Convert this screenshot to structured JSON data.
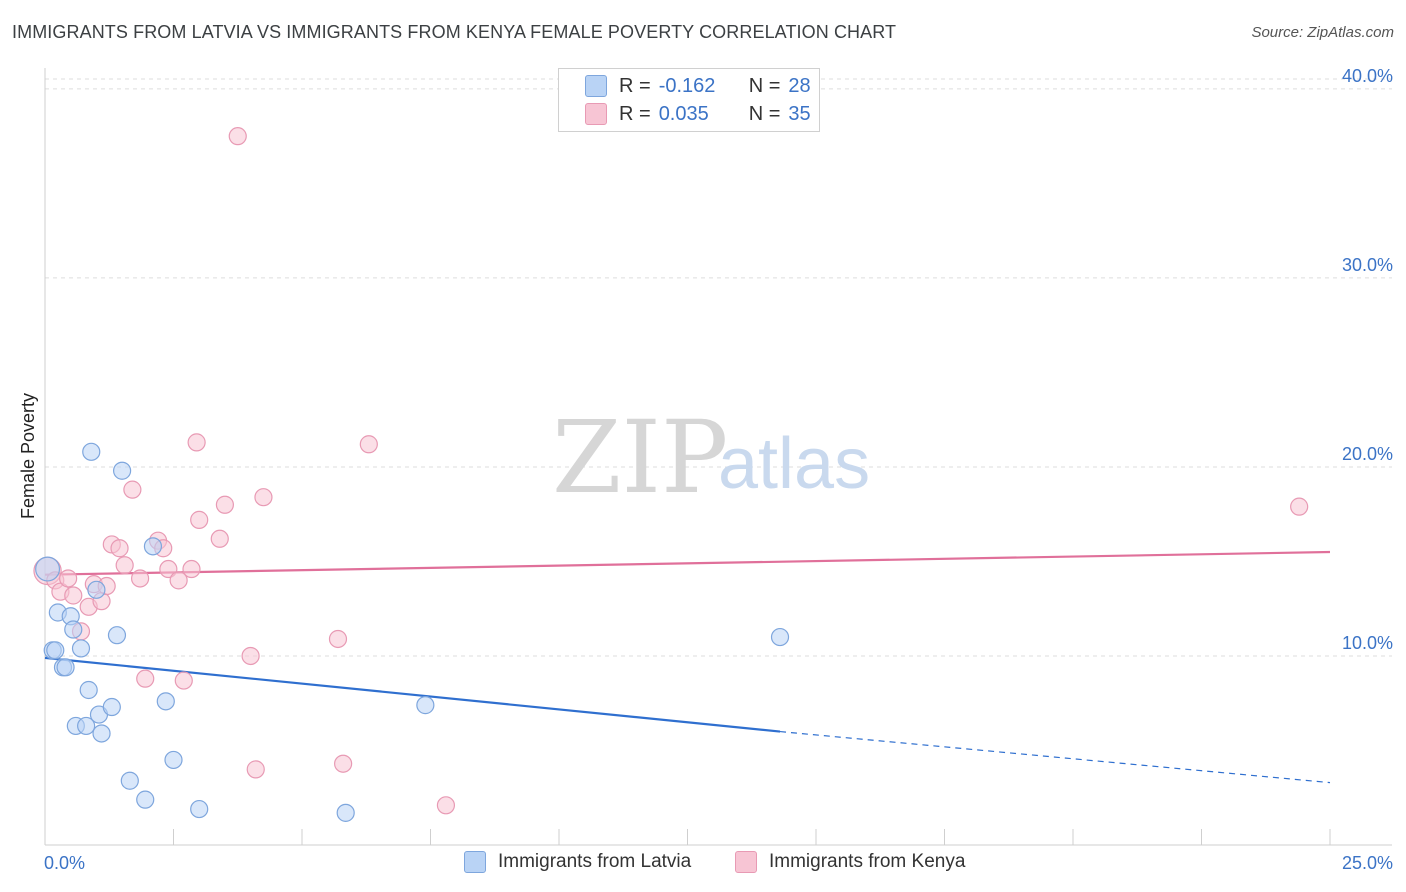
{
  "title": "IMMIGRANTS FROM LATVIA VS IMMIGRANTS FROM KENYA FEMALE POVERTY CORRELATION CHART",
  "source": "Source: ZipAtlas.com",
  "watermark": {
    "zip": "ZIP",
    "atlas": "atlas"
  },
  "colors": {
    "latvia_fill": "#b9d3f5",
    "latvia_stroke": "#7ea6dd",
    "latvia_line": "#2f6fcf",
    "kenya_fill": "#f7c5d4",
    "kenya_stroke": "#e89ab4",
    "kenya_line": "#e0709a",
    "axis_text": "#3b73c6",
    "grid": "#dddddd"
  },
  "legend": {
    "latvia": {
      "r_label": "R =",
      "r_value": "-0.162",
      "n_label": "N =",
      "n_value": "28"
    },
    "kenya": {
      "r_label": "R =",
      "r_value": "0.035",
      "n_label": "N =",
      "n_value": "35"
    }
  },
  "chart_data": {
    "type": "scatter",
    "title": "IMMIGRANTS FROM LATVIA VS IMMIGRANTS FROM KENYA FEMALE POVERTY CORRELATION CHART",
    "xlabel": "",
    "ylabel": "Female Poverty",
    "xlim": [
      0,
      25
    ],
    "ylim": [
      0,
      41
    ],
    "x_tick_labels": [
      {
        "value": 0,
        "label": "0.0%"
      },
      {
        "value": 25,
        "label": "25.0%"
      }
    ],
    "y_ticks": [
      {
        "value": 10,
        "label": "10.0%"
      },
      {
        "value": 20,
        "label": "20.0%"
      },
      {
        "value": 30,
        "label": "30.0%"
      },
      {
        "value": 40,
        "label": "40.0%"
      }
    ],
    "series": [
      {
        "name": "Immigrants from Latvia",
        "points": [
          {
            "x": 0.05,
            "y": 14.6,
            "s": 1.4
          },
          {
            "x": 0.15,
            "y": 10.3,
            "s": 1
          },
          {
            "x": 0.2,
            "y": 10.3,
            "s": 1
          },
          {
            "x": 0.25,
            "y": 12.3,
            "s": 1
          },
          {
            "x": 0.35,
            "y": 9.4,
            "s": 1
          },
          {
            "x": 0.4,
            "y": 9.4,
            "s": 1
          },
          {
            "x": 0.5,
            "y": 12.1,
            "s": 1
          },
          {
            "x": 0.55,
            "y": 11.4,
            "s": 1
          },
          {
            "x": 0.6,
            "y": 6.3,
            "s": 1
          },
          {
            "x": 0.7,
            "y": 10.4,
            "s": 1
          },
          {
            "x": 0.8,
            "y": 6.3,
            "s": 1
          },
          {
            "x": 0.85,
            "y": 8.2,
            "s": 1
          },
          {
            "x": 0.9,
            "y": 20.8,
            "s": 1
          },
          {
            "x": 1.0,
            "y": 13.5,
            "s": 1
          },
          {
            "x": 1.05,
            "y": 6.9,
            "s": 1
          },
          {
            "x": 1.1,
            "y": 5.9,
            "s": 1
          },
          {
            "x": 1.3,
            "y": 7.3,
            "s": 1
          },
          {
            "x": 1.4,
            "y": 11.1,
            "s": 1
          },
          {
            "x": 1.5,
            "y": 19.8,
            "s": 1
          },
          {
            "x": 1.65,
            "y": 3.4,
            "s": 1
          },
          {
            "x": 1.95,
            "y": 2.4,
            "s": 1
          },
          {
            "x": 2.1,
            "y": 15.8,
            "s": 1
          },
          {
            "x": 2.35,
            "y": 7.6,
            "s": 1
          },
          {
            "x": 2.5,
            "y": 4.5,
            "s": 1
          },
          {
            "x": 3.0,
            "y": 1.9,
            "s": 1
          },
          {
            "x": 5.85,
            "y": 1.7,
            "s": 1
          },
          {
            "x": 7.4,
            "y": 7.4,
            "s": 1
          },
          {
            "x": 14.3,
            "y": 11.0,
            "s": 1
          }
        ],
        "trend": {
          "x0": 0,
          "y0": 9.9,
          "x1": 14.3,
          "y1": 6.0,
          "dashed_to_x": 25,
          "dashed_to_y": 3.3
        }
      },
      {
        "name": "Immigrants from Kenya",
        "points": [
          {
            "x": 0.05,
            "y": 14.5,
            "s": 1.6
          },
          {
            "x": 0.2,
            "y": 14.0,
            "s": 1
          },
          {
            "x": 0.3,
            "y": 13.4,
            "s": 1
          },
          {
            "x": 0.45,
            "y": 14.1,
            "s": 1
          },
          {
            "x": 0.55,
            "y": 13.2,
            "s": 1
          },
          {
            "x": 0.7,
            "y": 11.3,
            "s": 1
          },
          {
            "x": 0.85,
            "y": 12.6,
            "s": 1
          },
          {
            "x": 0.95,
            "y": 13.8,
            "s": 1
          },
          {
            "x": 1.1,
            "y": 12.9,
            "s": 1
          },
          {
            "x": 1.2,
            "y": 13.7,
            "s": 1
          },
          {
            "x": 1.3,
            "y": 15.9,
            "s": 1
          },
          {
            "x": 1.45,
            "y": 15.7,
            "s": 1
          },
          {
            "x": 1.55,
            "y": 14.8,
            "s": 1
          },
          {
            "x": 1.7,
            "y": 18.8,
            "s": 1
          },
          {
            "x": 1.85,
            "y": 14.1,
            "s": 1
          },
          {
            "x": 1.95,
            "y": 8.8,
            "s": 1
          },
          {
            "x": 2.2,
            "y": 16.1,
            "s": 1
          },
          {
            "x": 2.3,
            "y": 15.7,
            "s": 1
          },
          {
            "x": 2.4,
            "y": 14.6,
            "s": 1
          },
          {
            "x": 2.6,
            "y": 14.0,
            "s": 1
          },
          {
            "x": 2.7,
            "y": 8.7,
            "s": 1
          },
          {
            "x": 2.85,
            "y": 14.6,
            "s": 1
          },
          {
            "x": 2.95,
            "y": 21.3,
            "s": 1
          },
          {
            "x": 3.0,
            "y": 17.2,
            "s": 1
          },
          {
            "x": 3.4,
            "y": 16.2,
            "s": 1
          },
          {
            "x": 3.5,
            "y": 18.0,
            "s": 1
          },
          {
            "x": 3.75,
            "y": 37.5,
            "s": 1
          },
          {
            "x": 4.0,
            "y": 10.0,
            "s": 1
          },
          {
            "x": 4.1,
            "y": 4.0,
            "s": 1
          },
          {
            "x": 4.25,
            "y": 18.4,
            "s": 1
          },
          {
            "x": 5.7,
            "y": 10.9,
            "s": 1
          },
          {
            "x": 5.8,
            "y": 4.3,
            "s": 1
          },
          {
            "x": 6.3,
            "y": 21.2,
            "s": 1
          },
          {
            "x": 7.8,
            "y": 2.1,
            "s": 1
          },
          {
            "x": 24.4,
            "y": 17.9,
            "s": 1
          }
        ],
        "trend": {
          "x0": 0,
          "y0": 14.3,
          "x1": 25,
          "y1": 15.5
        }
      }
    ]
  },
  "bottom_legend": {
    "latvia_label": "Immigrants from Latvia",
    "kenya_label": "Immigrants from Kenya"
  }
}
